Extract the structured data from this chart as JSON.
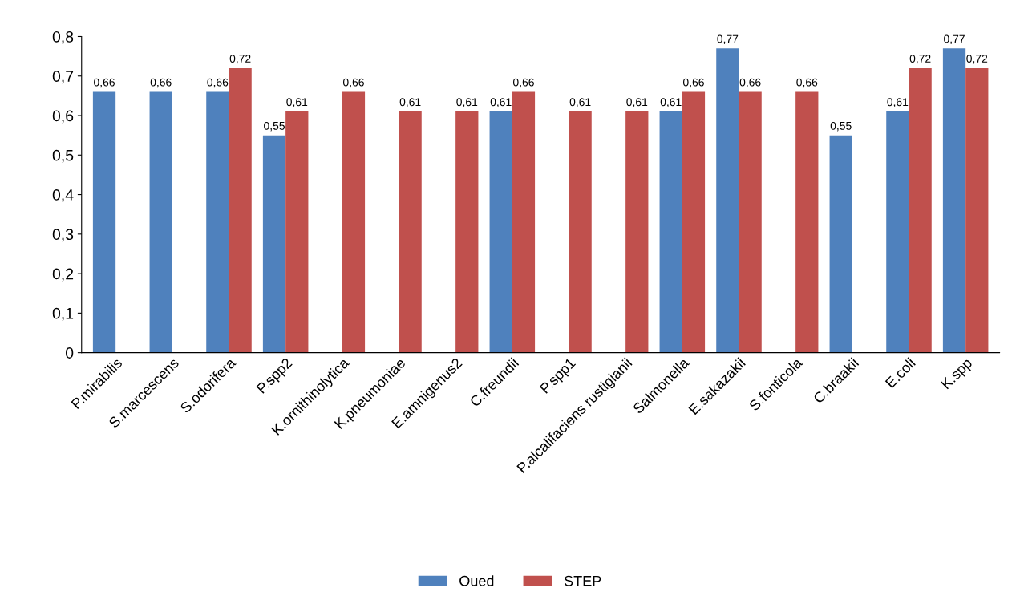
{
  "chart_data": {
    "type": "bar",
    "categories": [
      "P.mirabilis",
      "S.marcescens",
      "S.odorifera",
      "P.spp2",
      "K.ornithinolytica",
      "K.pneumoniae",
      "E.amnigenus2",
      "C.freundii",
      "P.spp1",
      "P.alcalifaciens rustigianii",
      "Salmonella",
      "E.sakazakii",
      "S.fonticola",
      "C.braakii",
      "E.coli",
      "K.spp"
    ],
    "series": [
      {
        "name": "Oued",
        "color": "#4f81bd",
        "values": [
          0.66,
          0.66,
          0.66,
          0.55,
          null,
          null,
          null,
          0.61,
          null,
          null,
          0.61,
          0.77,
          null,
          0.55,
          0.61,
          0.77
        ],
        "value_labels": [
          "0,66",
          "0,66",
          "0,66",
          "0,55",
          null,
          null,
          null,
          "0,61",
          null,
          null,
          "0,61",
          "0,77",
          null,
          "0,55",
          "0,61",
          "0,77"
        ]
      },
      {
        "name": "STEP",
        "color": "#c0504d",
        "values": [
          null,
          null,
          0.72,
          0.61,
          0.66,
          0.61,
          0.61,
          0.66,
          0.61,
          0.61,
          0.66,
          0.66,
          0.66,
          null,
          0.72,
          0.72
        ],
        "value_labels": [
          null,
          null,
          "0,72",
          "0,61",
          "0,66",
          "0,61",
          "0,61",
          "0,66",
          "0,61",
          "0,61",
          "0,66",
          "0,66",
          "0,66",
          null,
          "0,72",
          "0,72"
        ]
      }
    ],
    "ylim": [
      0,
      0.8
    ],
    "yticks": [
      {
        "value": 0,
        "label": "0"
      },
      {
        "value": 0.1,
        "label": "0,1"
      },
      {
        "value": 0.2,
        "label": "0,2"
      },
      {
        "value": 0.3,
        "label": "0,3"
      },
      {
        "value": 0.4,
        "label": "0,4"
      },
      {
        "value": 0.5,
        "label": "0,5"
      },
      {
        "value": 0.6,
        "label": "0,6"
      },
      {
        "value": 0.7,
        "label": "0,7"
      },
      {
        "value": 0.8,
        "label": "0,8"
      }
    ],
    "legend": "bottom"
  }
}
